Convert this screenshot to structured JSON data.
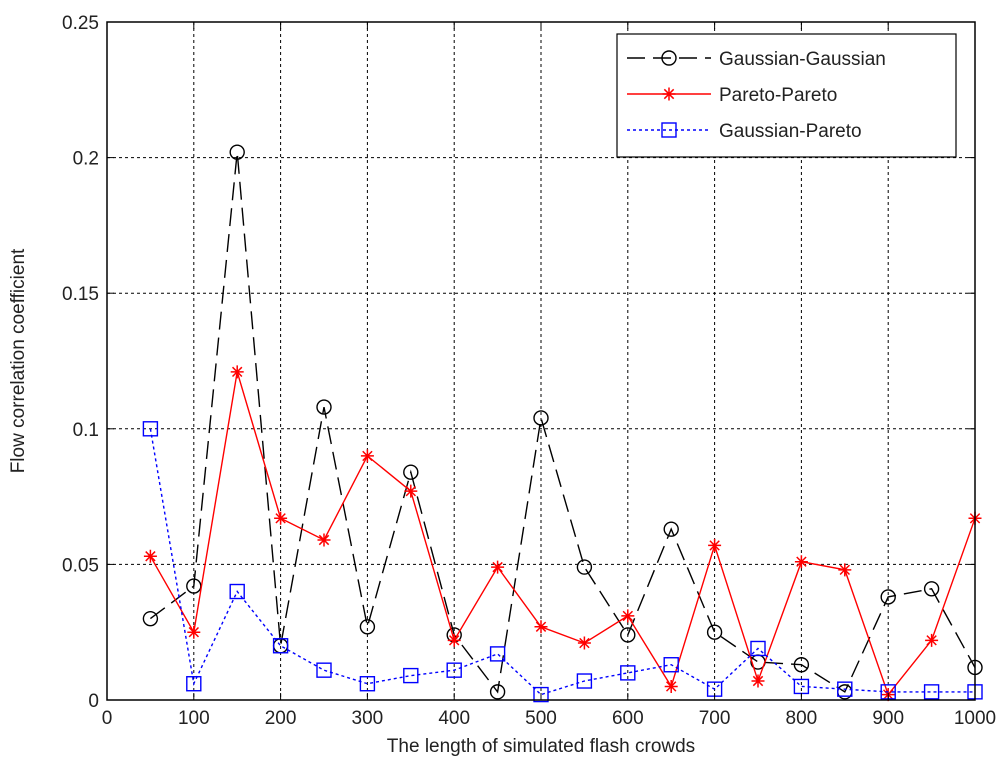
{
  "chart_data": {
    "type": "line",
    "title": "",
    "xlabel": "The length of simulated flash crowds",
    "ylabel": "Flow correlation coefficient",
    "xlim": [
      0,
      1000
    ],
    "ylim": [
      0,
      0.25
    ],
    "x_ticks": [
      0,
      100,
      200,
      300,
      400,
      500,
      600,
      700,
      800,
      900,
      1000
    ],
    "y_ticks": [
      0,
      0.05,
      0.1,
      0.15,
      0.2,
      0.25
    ],
    "x_tick_labels": [
      "0",
      "100",
      "200",
      "300",
      "400",
      "500",
      "600",
      "700",
      "800",
      "900",
      "1000"
    ],
    "y_tick_labels": [
      "0",
      "0.05",
      "0.1",
      "0.15",
      "0.2",
      "0.25"
    ],
    "grid": true,
    "legend_position": "top-right",
    "x": [
      50,
      100,
      150,
      200,
      250,
      300,
      350,
      400,
      450,
      500,
      550,
      600,
      650,
      700,
      750,
      800,
      850,
      900,
      950,
      1000
    ],
    "series": [
      {
        "name": "Gaussian-Gaussian",
        "color": "#000000",
        "marker": "circle",
        "line_style": "dashed-long",
        "values": [
          0.03,
          0.042,
          0.202,
          0.02,
          0.108,
          0.027,
          0.084,
          0.024,
          0.003,
          0.104,
          0.049,
          0.024,
          0.063,
          0.025,
          0.014,
          0.013,
          0.003,
          0.038,
          0.041,
          0.012
        ]
      },
      {
        "name": "Pareto-Pareto",
        "color": "#ff0000",
        "marker": "star",
        "line_style": "solid",
        "values": [
          0.053,
          0.025,
          0.121,
          0.067,
          0.059,
          0.09,
          0.077,
          0.022,
          0.049,
          0.027,
          0.021,
          0.031,
          0.005,
          0.057,
          0.007,
          0.051,
          0.048,
          0.002,
          0.022,
          0.067
        ]
      },
      {
        "name": "Gaussian-Pareto",
        "color": "#0000ff",
        "marker": "square",
        "line_style": "dotted",
        "values": [
          0.1,
          0.006,
          0.04,
          0.02,
          0.011,
          0.006,
          0.009,
          0.011,
          0.017,
          0.002,
          0.007,
          0.01,
          0.013,
          0.004,
          0.019,
          0.005,
          0.004,
          0.003,
          0.003,
          0.003
        ]
      }
    ]
  }
}
